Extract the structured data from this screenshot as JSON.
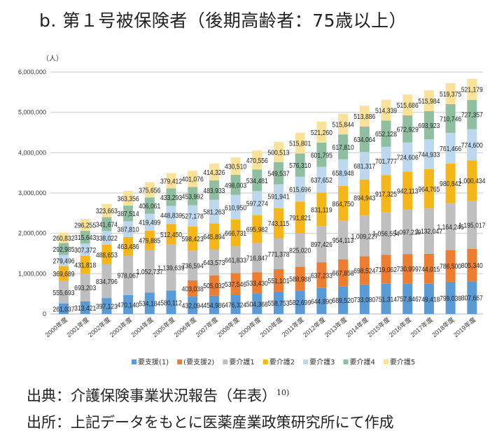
{
  "title": "b.  第１号被保険者（後期高齢者：75歳以上）",
  "source_line": "出典：介護保険事業状況報告（年表）",
  "source_ref": "10)",
  "made_line": "出所：上記データをもとに医薬産業政策研究所にて作成",
  "chart_data": {
    "type": "bar",
    "stacked": true,
    "ylabel": "（人）",
    "ylim": [
      0,
      6000000
    ],
    "yticks": [
      "0",
      "1,000,000",
      "2,000,000",
      "3,000,000",
      "4,000,000",
      "5,000,000",
      "6,000,000"
    ],
    "grid": true,
    "legend_position": "bottom",
    "categories": [
      "2000年度",
      "2001年度",
      "2002年度",
      "2003年度",
      "2004年度",
      "2005年度",
      "2006年度",
      "2007年度",
      "2008年度",
      "2009年度",
      "2010年度",
      "2011年度",
      "2012年度",
      "2013年度",
      "2014年度",
      "2015年度",
      "2016年度",
      "2017年度",
      "2018年度",
      "2019年度"
    ],
    "series": [
      {
        "name": "要支援(1)",
        "color": "#5b9bd5",
        "values": [
          261037,
          313421,
          397123,
          470140,
          534184,
          580112,
          432094,
          454986,
          476324,
          504368,
          558753,
          582699,
          644890,
          689520,
          733080,
          751314,
          757846,
          749418,
          799038,
          807667
        ]
      },
      {
        "name": "(要支援2)",
        "color": "#ed7d31",
        "values": [
          null,
          null,
          null,
          null,
          null,
          null,
          403038,
          505032,
          537546,
          533430,
          551101,
          588988,
          637233,
          667858,
          698524,
          719062,
          730999,
          744015,
          786500,
          805340
        ]
      },
      {
        "name": "要介護1",
        "color": "#bfbfbf",
        "values": [
          555693,
          693203,
          834796,
          978067,
          1052737,
          1139639,
          736594,
          643573,
          661833,
          716847,
          771378,
          825020,
          897426,
          954113,
          1009227,
          1056554,
          1097219,
          1132047,
          1164245,
          1195017
        ]
      },
      {
        "name": "要介護2",
        "color": "#f4b619",
        "values": [
          369689,
          431818,
          488653,
          463486,
          479885,
          512450,
          598423,
          645894,
          666731,
          695982,
          743115,
          791821,
          831119,
          864750,
          894943,
          917325,
          942113,
          964765,
          980842,
          1000434
        ]
      },
      {
        "name": "要介護3",
        "color": "#bdd7ee",
        "values": [
          279496,
          307372,
          338022,
          387810,
          419499,
          448839,
          527178,
          581263,
          610950,
          597274,
          591941,
          615696,
          637652,
          658948,
          681317,
          701777,
          724606,
          744933,
          761466,
          774600
        ]
      },
      {
        "name": "要介護4",
        "color": "#8fbfa0",
        "values": [
          292985,
          315643,
          341674,
          387514,
          406061,
          433293,
          453992,
          483933,
          498003,
          534481,
          549537,
          576310,
          601795,
          617810,
          634064,
          652128,
          672929,
          693923,
          710746,
          727357
        ]
      },
      {
        "name": "要介護5",
        "color": "#fbe29b",
        "values": [
          260832,
          296255,
          323663,
          363356,
          375656,
          379412,
          401076,
          414326,
          430510,
          470556,
          500513,
          515801,
          521260,
          515844,
          513886,
          514339,
          515686,
          515984,
          519375,
          521179
        ]
      }
    ]
  }
}
